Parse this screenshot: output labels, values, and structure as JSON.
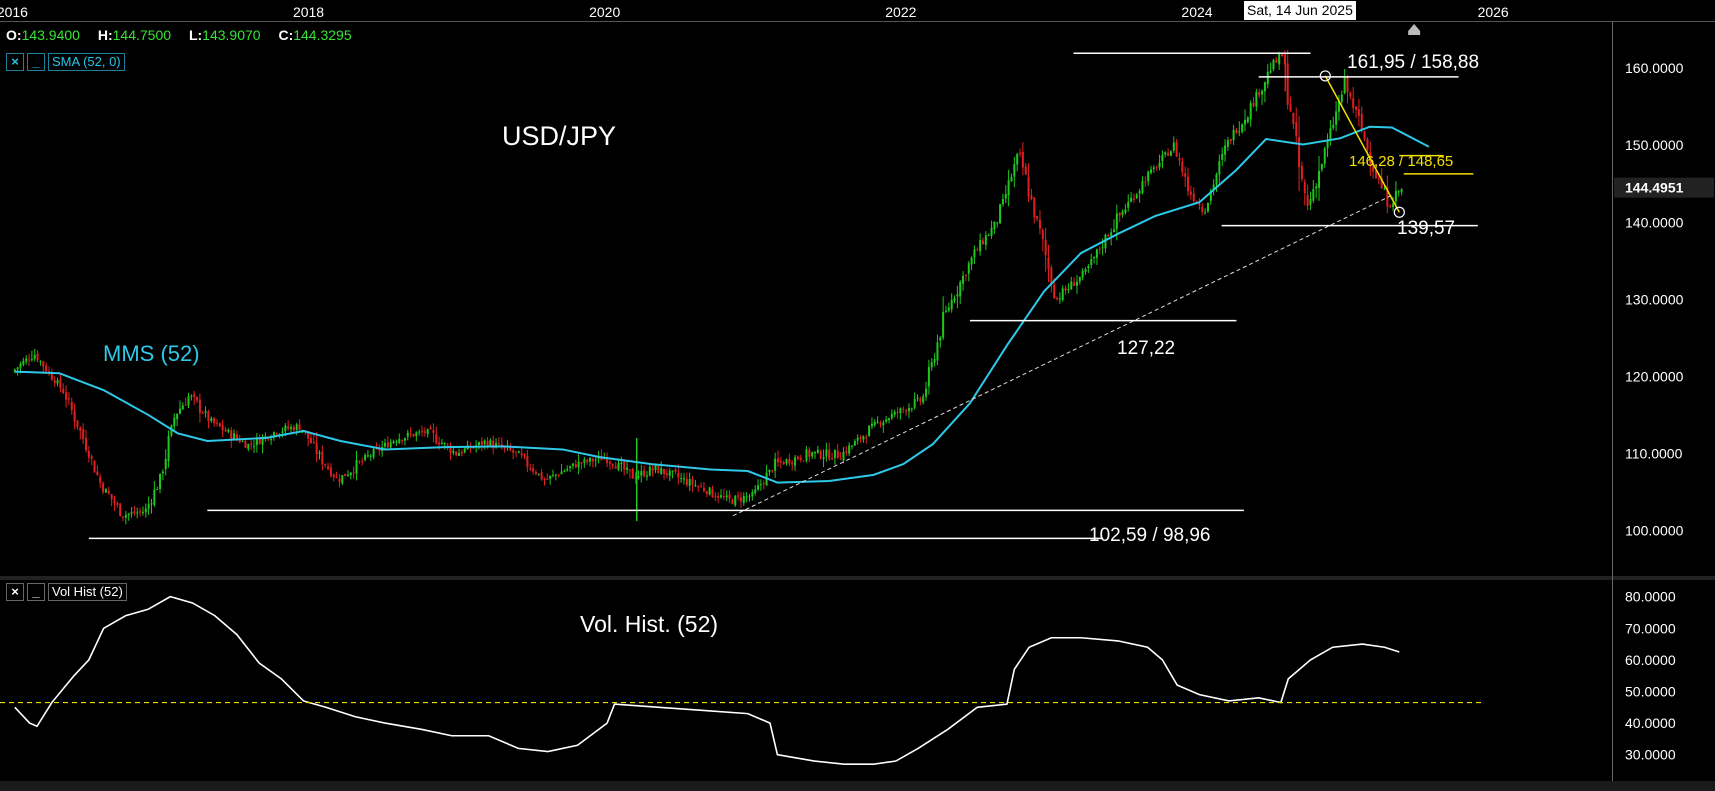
{
  "ohlc": [
    {
      "label": "O:",
      "value": "143.9400"
    },
    {
      "label": "H:",
      "value": "144.7500"
    },
    {
      "label": "L:",
      "value": "143.9070"
    },
    {
      "label": "C:",
      "value": "144.3295"
    }
  ],
  "indicators": {
    "main": {
      "close": "×",
      "minimize": "_",
      "name": "SMA (52, 0)"
    },
    "lower": {
      "close": "×",
      "minimize": "_",
      "name": "Vol Hist (52)"
    }
  },
  "crosshair_date": "Sat, 14 Jun 2025",
  "colors": {
    "up": "#1ec81e",
    "down": "#e02020",
    "sma": "#2ec8e8",
    "trend_yellow": "#f2e000",
    "white": "#ffffff"
  },
  "chart_data": [
    {
      "type": "candlestick",
      "title": "USD/JPY",
      "x_axis": {
        "tick_labels": [
          "2016",
          "2018",
          "2020",
          "2022",
          "2024",
          "2026"
        ],
        "range": [
          2015.9,
          2026.3
        ]
      },
      "y_axis": {
        "tick_labels": [
          "100.0000",
          "110.0000",
          "120.0000",
          "130.0000",
          "140.0000",
          "150.0000",
          "160.0000"
        ],
        "range": [
          94.2,
          166.0
        ]
      },
      "last_price": "144.4951",
      "series": [
        {
          "name": "MMS (52)",
          "kind": "sma",
          "values": [
            [
              2016.0,
              120.6
            ],
            [
              2016.3,
              120.4
            ],
            [
              2016.6,
              118.2
            ],
            [
              2016.9,
              115.0
            ],
            [
              2017.1,
              112.6
            ],
            [
              2017.3,
              111.6
            ],
            [
              2017.7,
              112.0
            ],
            [
              2017.95,
              112.9
            ],
            [
              2018.2,
              111.6
            ],
            [
              2018.5,
              110.5
            ],
            [
              2018.9,
              110.8
            ],
            [
              2019.3,
              110.9
            ],
            [
              2019.7,
              110.5
            ],
            [
              2019.95,
              109.5
            ],
            [
              2020.3,
              108.6
            ],
            [
              2020.7,
              107.9
            ],
            [
              2020.95,
              107.7
            ],
            [
              2021.15,
              106.2
            ],
            [
              2021.5,
              106.4
            ],
            [
              2021.8,
              107.2
            ],
            [
              2022.0,
              108.6
            ],
            [
              2022.2,
              111.2
            ],
            [
              2022.45,
              116.5
            ],
            [
              2022.7,
              124.0
            ],
            [
              2022.95,
              131.0
            ],
            [
              2023.2,
              136.0
            ],
            [
              2023.45,
              138.5
            ],
            [
              2023.7,
              140.8
            ],
            [
              2024.0,
              142.6
            ],
            [
              2024.25,
              146.8
            ],
            [
              2024.45,
              150.8
            ],
            [
              2024.7,
              150.1
            ],
            [
              2024.95,
              150.9
            ],
            [
              2025.15,
              152.4
            ],
            [
              2025.3,
              152.3
            ],
            [
              2025.55,
              149.8
            ]
          ]
        }
      ],
      "annotations": [
        "161,95 / 158,88",
        "146,28 / 148,65",
        "139,57",
        "127,22",
        "102,59 / 98,96"
      ],
      "levels": [
        {
          "label": "161,95 / 158,88",
          "values": [
            161.95,
            158.88
          ]
        },
        {
          "label": "146,28 / 148,65",
          "values": [
            146.28,
            148.65
          ]
        },
        {
          "label": "139,57",
          "values": [
            139.57
          ]
        },
        {
          "label": "127,22",
          "values": [
            127.22
          ]
        },
        {
          "label": "102,59 / 98,96",
          "values": [
            102.59,
            98.96
          ]
        }
      ],
      "trendlines": [
        {
          "kind": "support",
          "color": "white-dashed",
          "from": [
            2020.85,
            101.9
          ],
          "to": [
            2025.3,
            143.5
          ]
        },
        {
          "kind": "resistance",
          "color": "yellow",
          "from": [
            2024.85,
            159.0
          ],
          "to": [
            2025.35,
            141.3
          ]
        }
      ],
      "price_path": [
        [
          2016.0,
          120.6
        ],
        [
          2016.15,
          123.0
        ],
        [
          2016.35,
          118.0
        ],
        [
          2016.5,
          111.0
        ],
        [
          2016.6,
          106.0
        ],
        [
          2016.75,
          102.0
        ],
        [
          2016.9,
          102.5
        ],
        [
          2017.0,
          106.5
        ],
        [
          2017.1,
          115.0
        ],
        [
          2017.2,
          117.5
        ],
        [
          2017.35,
          114.0
        ],
        [
          2017.6,
          111.0
        ],
        [
          2017.8,
          113.0
        ],
        [
          2017.95,
          113.5
        ],
        [
          2018.1,
          109.0
        ],
        [
          2018.2,
          106.5
        ],
        [
          2018.4,
          109.5
        ],
        [
          2018.6,
          112.0
        ],
        [
          2018.8,
          112.8
        ],
        [
          2019.0,
          110.0
        ],
        [
          2019.2,
          111.5
        ],
        [
          2019.4,
          110.0
        ],
        [
          2019.6,
          106.5
        ],
        [
          2019.8,
          108.5
        ],
        [
          2020.0,
          109.5
        ],
        [
          2020.2,
          107.0
        ],
        [
          2020.35,
          108.0
        ],
        [
          2020.6,
          106.0
        ],
        [
          2020.85,
          103.8
        ],
        [
          2021.0,
          104.5
        ],
        [
          2021.15,
          108.5
        ],
        [
          2021.4,
          110.0
        ],
        [
          2021.6,
          109.8
        ],
        [
          2021.85,
          114.0
        ],
        [
          2022.0,
          115.5
        ],
        [
          2022.15,
          117.0
        ],
        [
          2022.3,
          128.0
        ],
        [
          2022.5,
          136.0
        ],
        [
          2022.65,
          140.0
        ],
        [
          2022.8,
          149.0
        ],
        [
          2022.95,
          138.0
        ],
        [
          2023.05,
          130.0
        ],
        [
          2023.25,
          133.5
        ],
        [
          2023.45,
          140.0
        ],
        [
          2023.65,
          145.5
        ],
        [
          2023.85,
          150.0
        ],
        [
          2023.95,
          144.0
        ],
        [
          2024.05,
          141.5
        ],
        [
          2024.2,
          150.0
        ],
        [
          2024.4,
          156.0
        ],
        [
          2024.5,
          160.0
        ],
        [
          2024.58,
          161.7
        ],
        [
          2024.7,
          146.0
        ],
        [
          2024.75,
          142.0
        ],
        [
          2024.85,
          148.0
        ],
        [
          2025.0,
          158.0
        ],
        [
          2025.1,
          153.0
        ],
        [
          2025.2,
          146.5
        ],
        [
          2025.3,
          142.5
        ],
        [
          2025.38,
          144.3
        ]
      ]
    },
    {
      "type": "line",
      "title": "Vol. Hist. (52)",
      "y_axis": {
        "tick_labels": [
          "30.0000",
          "40.0000",
          "50.0000",
          "60.0000",
          "70.0000",
          "80.0000"
        ],
        "range": [
          22.0,
          84.0
        ]
      },
      "reference_line": 46.5,
      "series": [
        {
          "name": "Vol. Hist. (52)",
          "values": [
            [
              2016.0,
              45.0
            ],
            [
              2016.1,
              40.0
            ],
            [
              2016.15,
              39.0
            ],
            [
              2016.25,
              46.5
            ],
            [
              2016.4,
              55.0
            ],
            [
              2016.5,
              60.0
            ],
            [
              2016.6,
              70.0
            ],
            [
              2016.75,
              74.0
            ],
            [
              2016.9,
              76.0
            ],
            [
              2017.05,
              80.0
            ],
            [
              2017.2,
              78.0
            ],
            [
              2017.35,
              74.0
            ],
            [
              2017.5,
              68.0
            ],
            [
              2017.65,
              59.0
            ],
            [
              2017.8,
              54.0
            ],
            [
              2017.95,
              47.0
            ],
            [
              2018.1,
              45.0
            ],
            [
              2018.3,
              42.0
            ],
            [
              2018.5,
              40.0
            ],
            [
              2018.75,
              38.0
            ],
            [
              2018.95,
              36.0
            ],
            [
              2019.2,
              36.0
            ],
            [
              2019.4,
              32.0
            ],
            [
              2019.6,
              31.0
            ],
            [
              2019.8,
              33.0
            ],
            [
              2020.0,
              40.0
            ],
            [
              2020.05,
              46.0
            ],
            [
              2020.35,
              45.0
            ],
            [
              2020.65,
              44.0
            ],
            [
              2020.95,
              43.0
            ],
            [
              2021.1,
              40.0
            ],
            [
              2021.15,
              30.0
            ],
            [
              2021.4,
              28.0
            ],
            [
              2021.6,
              27.0
            ],
            [
              2021.8,
              27.0
            ],
            [
              2021.95,
              28.0
            ],
            [
              2022.1,
              32.0
            ],
            [
              2022.3,
              38.0
            ],
            [
              2022.5,
              45.0
            ],
            [
              2022.7,
              46.0
            ],
            [
              2022.75,
              57.0
            ],
            [
              2022.85,
              64.0
            ],
            [
              2023.0,
              67.0
            ],
            [
              2023.2,
              67.0
            ],
            [
              2023.45,
              66.0
            ],
            [
              2023.65,
              64.0
            ],
            [
              2023.75,
              60.0
            ],
            [
              2023.85,
              52.0
            ],
            [
              2024.0,
              49.0
            ],
            [
              2024.2,
              47.0
            ],
            [
              2024.4,
              48.0
            ],
            [
              2024.55,
              46.5
            ],
            [
              2024.6,
              54.0
            ],
            [
              2024.75,
              60.0
            ],
            [
              2024.9,
              64.0
            ],
            [
              2025.1,
              65.0
            ],
            [
              2025.25,
              64.0
            ],
            [
              2025.35,
              62.5
            ]
          ]
        }
      ]
    }
  ]
}
